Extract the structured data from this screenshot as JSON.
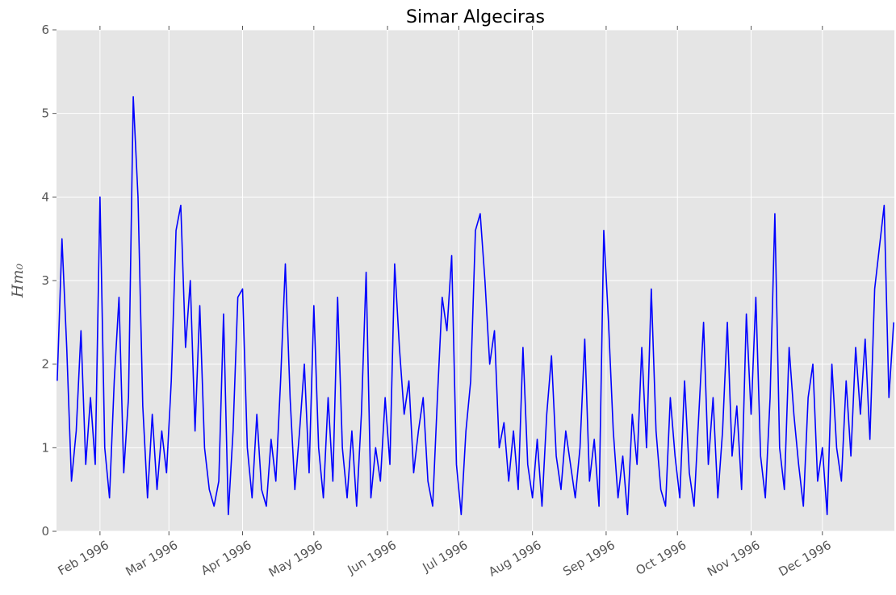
{
  "chart_data": {
    "type": "line",
    "title": "Simar Algeciras",
    "ylabel": "Hm₀",
    "color": "#0000ff",
    "grid": true,
    "xlim": [
      12.7,
      365.3
    ],
    "xticks": [
      {
        "value": 31,
        "label": "Feb 1996"
      },
      {
        "value": 60,
        "label": "Mar 1996"
      },
      {
        "value": 91,
        "label": "Apr 1996"
      },
      {
        "value": 121,
        "label": "May 1996"
      },
      {
        "value": 152,
        "label": "Jun 1996"
      },
      {
        "value": 182,
        "label": "Jul 1996"
      },
      {
        "value": 213,
        "label": "Aug 1996"
      },
      {
        "value": 244,
        "label": "Sep 1996"
      },
      {
        "value": 274,
        "label": "Oct 1996"
      },
      {
        "value": 305,
        "label": "Nov 1996"
      },
      {
        "value": 335,
        "label": "Dec 1996"
      }
    ],
    "ylim": [
      0,
      6
    ],
    "yticks": [
      0,
      1,
      2,
      3,
      4,
      5,
      6
    ],
    "x": [
      13,
      15,
      17,
      19,
      21,
      23,
      25,
      27,
      29,
      31,
      33,
      35,
      37,
      39,
      41,
      43,
      45,
      47,
      49,
      51,
      53,
      55,
      57,
      59,
      61,
      63,
      65,
      67,
      69,
      71,
      73,
      75,
      77,
      79,
      81,
      83,
      85,
      87,
      89,
      91,
      93,
      95,
      97,
      99,
      101,
      103,
      105,
      107,
      109,
      111,
      113,
      115,
      117,
      119,
      121,
      123,
      125,
      127,
      129,
      131,
      133,
      135,
      137,
      139,
      141,
      143,
      145,
      147,
      149,
      151,
      153,
      155,
      157,
      159,
      161,
      163,
      165,
      167,
      169,
      171,
      173,
      175,
      177,
      179,
      181,
      183,
      185,
      187,
      189,
      191,
      193,
      195,
      197,
      199,
      201,
      203,
      205,
      207,
      209,
      211,
      213,
      215,
      217,
      219,
      221,
      223,
      225,
      227,
      229,
      231,
      233,
      235,
      237,
      239,
      241,
      243,
      245,
      247,
      249,
      251,
      253,
      255,
      257,
      259,
      261,
      263,
      265,
      267,
      269,
      271,
      273,
      275,
      277,
      279,
      281,
      283,
      285,
      287,
      289,
      291,
      293,
      295,
      297,
      299,
      301,
      303,
      305,
      307,
      309,
      311,
      313,
      315,
      317,
      319,
      321,
      323,
      325,
      327,
      329,
      331,
      333,
      335,
      337,
      339,
      341,
      343,
      345,
      347,
      349,
      351,
      353,
      355,
      357,
      359,
      361,
      363,
      365
    ],
    "values": [
      1.8,
      3.5,
      2.2,
      0.6,
      1.2,
      2.4,
      0.8,
      1.6,
      0.8,
      4.0,
      1.0,
      0.4,
      1.8,
      2.8,
      0.7,
      1.6,
      5.2,
      4.0,
      1.5,
      0.4,
      1.4,
      0.5,
      1.2,
      0.7,
      1.8,
      3.6,
      3.9,
      2.2,
      3.0,
      1.2,
      2.7,
      1.0,
      0.5,
      0.3,
      0.6,
      2.6,
      0.2,
      1.2,
      2.8,
      2.9,
      1.0,
      0.4,
      1.4,
      0.5,
      0.3,
      1.1,
      0.6,
      1.8,
      3.2,
      1.6,
      0.5,
      1.2,
      2.0,
      0.7,
      2.7,
      1.0,
      0.4,
      1.6,
      0.6,
      2.8,
      1.0,
      0.4,
      1.2,
      0.3,
      1.4,
      3.1,
      0.4,
      1.0,
      0.6,
      1.6,
      0.8,
      3.2,
      2.2,
      1.4,
      1.8,
      0.7,
      1.2,
      1.6,
      0.6,
      0.3,
      1.6,
      2.8,
      2.4,
      3.3,
      0.8,
      0.2,
      1.2,
      1.8,
      3.6,
      3.8,
      3.0,
      2.0,
      2.4,
      1.0,
      1.3,
      0.6,
      1.2,
      0.5,
      2.2,
      0.8,
      0.4,
      1.1,
      0.3,
      1.4,
      2.1,
      0.9,
      0.5,
      1.2,
      0.8,
      0.4,
      1.0,
      2.3,
      0.6,
      1.1,
      0.3,
      3.6,
      2.5,
      1.2,
      0.4,
      0.9,
      0.2,
      1.4,
      0.8,
      2.2,
      1.0,
      2.9,
      1.2,
      0.5,
      0.3,
      1.6,
      0.9,
      0.4,
      1.8,
      0.7,
      0.3,
      1.4,
      2.5,
      0.8,
      1.6,
      0.4,
      1.2,
      2.5,
      0.9,
      1.5,
      0.5,
      2.6,
      1.4,
      2.8,
      0.9,
      0.4,
      1.6,
      3.8,
      1.0,
      0.5,
      2.2,
      1.4,
      0.8,
      0.3,
      1.6,
      2.0,
      0.6,
      1.0,
      0.2,
      2.0,
      1.0,
      0.6,
      1.8,
      0.9,
      2.2,
      1.4,
      2.3,
      1.1,
      2.9,
      3.4,
      3.9,
      1.6,
      2.5
    ]
  }
}
